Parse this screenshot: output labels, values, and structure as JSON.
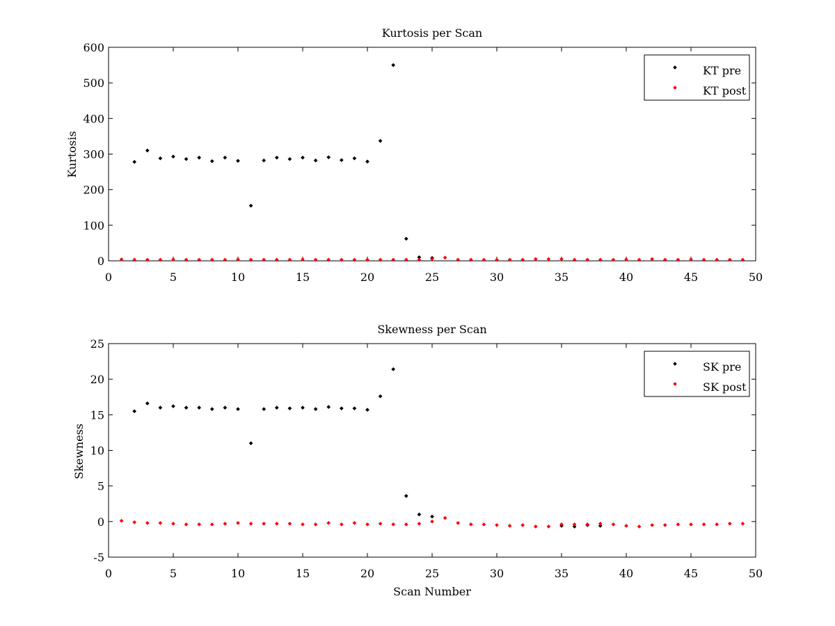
{
  "chart_data": [
    {
      "type": "scatter",
      "title": "Kurtosis per Scan",
      "xlabel": "",
      "ylabel": "Kurtosis",
      "xlim": [
        0,
        50
      ],
      "ylim": [
        0,
        600
      ],
      "xticks": [
        "0",
        "5",
        "10",
        "15",
        "20",
        "25",
        "30",
        "35",
        "40",
        "45",
        "50"
      ],
      "yticks": [
        "0",
        "100",
        "200",
        "300",
        "400",
        "500",
        "600"
      ],
      "legend_position": "top-right",
      "grid": false,
      "series": [
        {
          "name": "KT pre",
          "color": "#000000",
          "x": [
            2,
            3,
            4,
            5,
            6,
            7,
            8,
            9,
            10,
            11,
            12,
            13,
            14,
            15,
            16,
            17,
            18,
            19,
            20,
            21,
            22,
            23,
            24,
            25
          ],
          "y": [
            278,
            310,
            288,
            293,
            286,
            290,
            280,
            290,
            281,
            155,
            282,
            290,
            286,
            290,
            282,
            291,
            283,
            288,
            279,
            337,
            550,
            62,
            10,
            8
          ]
        },
        {
          "name": "KT post",
          "color": "#ff0000",
          "x": [
            1,
            2,
            3,
            4,
            5,
            6,
            7,
            8,
            9,
            10,
            11,
            12,
            13,
            14,
            15,
            16,
            17,
            18,
            19,
            20,
            21,
            22,
            23,
            24,
            25,
            26,
            27,
            28,
            29,
            30,
            31,
            32,
            33,
            34,
            35,
            36,
            37,
            38,
            39,
            40,
            41,
            42,
            43,
            44,
            45,
            46,
            47,
            48,
            49
          ],
          "y": [
            4,
            3,
            3,
            3,
            4,
            3,
            3,
            3,
            3,
            4,
            3,
            3,
            3,
            3,
            4,
            3,
            3,
            3,
            3,
            3,
            3,
            3,
            3,
            3,
            5,
            9,
            3,
            3,
            3,
            3,
            3,
            3,
            5,
            5,
            5,
            3,
            3,
            3,
            3,
            4,
            3,
            5,
            3,
            3,
            4,
            3,
            3,
            3,
            3
          ]
        }
      ]
    },
    {
      "type": "scatter",
      "title": "Skewness per Scan",
      "xlabel": "Scan Number",
      "ylabel": "Skewness",
      "xlim": [
        0,
        50
      ],
      "ylim": [
        -5,
        25
      ],
      "xticks": [
        "0",
        "5",
        "10",
        "15",
        "20",
        "25",
        "30",
        "35",
        "40",
        "45",
        "50"
      ],
      "yticks": [
        "-5",
        "0",
        "5",
        "10",
        "15",
        "20",
        "25"
      ],
      "legend_position": "top-right",
      "grid": false,
      "series": [
        {
          "name": "SK pre",
          "color": "#000000",
          "x": [
            2,
            3,
            4,
            5,
            6,
            7,
            8,
            9,
            10,
            11,
            12,
            13,
            14,
            15,
            16,
            17,
            18,
            19,
            20,
            21,
            22,
            23,
            24,
            25,
            35,
            36,
            37,
            38
          ],
          "y": [
            15.5,
            16.6,
            16.0,
            16.2,
            16.0,
            16.0,
            15.8,
            16.0,
            15.8,
            11.0,
            15.8,
            16.0,
            15.9,
            16.0,
            15.8,
            16.1,
            15.9,
            15.9,
            15.7,
            17.6,
            21.4,
            3.6,
            1.0,
            0.7,
            -0.6,
            -0.7,
            -0.5,
            -0.6
          ]
        },
        {
          "name": "SK post",
          "color": "#ff0000",
          "x": [
            1,
            2,
            3,
            4,
            5,
            6,
            7,
            8,
            9,
            10,
            11,
            12,
            13,
            14,
            15,
            16,
            17,
            18,
            19,
            20,
            21,
            22,
            23,
            24,
            25,
            26,
            27,
            28,
            29,
            30,
            31,
            32,
            33,
            34,
            35,
            36,
            37,
            38,
            39,
            40,
            41,
            42,
            43,
            44,
            45,
            46,
            47,
            48,
            49
          ],
          "y": [
            0.1,
            -0.1,
            -0.2,
            -0.2,
            -0.3,
            -0.4,
            -0.4,
            -0.4,
            -0.3,
            -0.2,
            -0.3,
            -0.3,
            -0.3,
            -0.3,
            -0.4,
            -0.4,
            -0.2,
            -0.4,
            -0.2,
            -0.4,
            -0.3,
            -0.4,
            -0.4,
            -0.3,
            0.0,
            0.5,
            -0.2,
            -0.4,
            -0.4,
            -0.5,
            -0.6,
            -0.5,
            -0.7,
            -0.7,
            -0.4,
            -0.4,
            -0.4,
            -0.3,
            -0.4,
            -0.6,
            -0.7,
            -0.5,
            -0.5,
            -0.4,
            -0.4,
            -0.4,
            -0.4,
            -0.3,
            -0.3
          ]
        }
      ]
    }
  ]
}
